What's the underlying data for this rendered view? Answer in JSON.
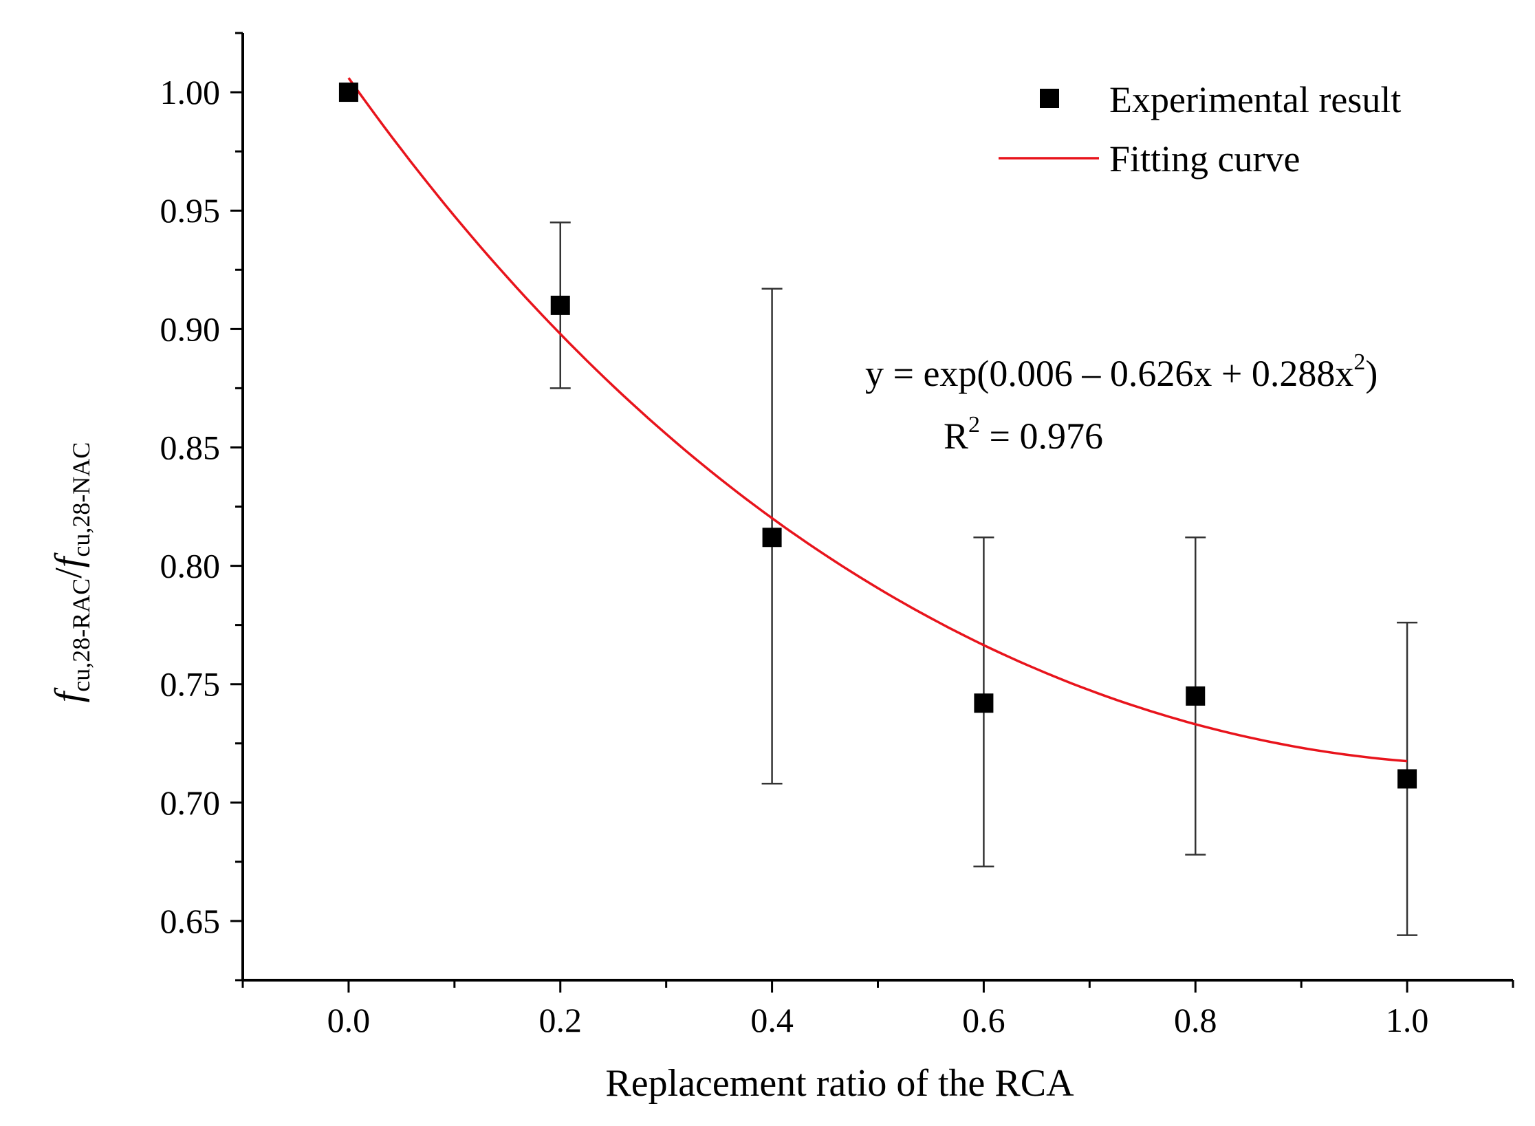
{
  "chart_data": {
    "type": "scatter",
    "title": "",
    "xlabel": "Replacement ratio of the RCA",
    "ylabel": {
      "f1": "f",
      "sub1": "cu,28-RAC",
      "slash": "/",
      "f2": "f",
      "sub2": "cu,28-NAC"
    },
    "xlim": [
      -0.1,
      1.1
    ],
    "ylim": [
      0.625,
      1.025
    ],
    "x_ticks": [
      "0.0",
      "0.2",
      "0.4",
      "0.6",
      "0.8",
      "1.0"
    ],
    "y_ticks": [
      "0.65",
      "0.70",
      "0.75",
      "0.80",
      "0.85",
      "0.90",
      "0.95",
      "1.00"
    ],
    "grid": false,
    "legend_position": "top-right",
    "series": [
      {
        "name": "Experimental result",
        "kind": "points-with-error-bars",
        "color": "#000000",
        "points": [
          {
            "x": 0.0,
            "y": 1.0,
            "err_low": 1.0,
            "err_high": 1.0
          },
          {
            "x": 0.2,
            "y": 0.91,
            "err_low": 0.875,
            "err_high": 0.945
          },
          {
            "x": 0.4,
            "y": 0.812,
            "err_low": 0.708,
            "err_high": 0.917
          },
          {
            "x": 0.6,
            "y": 0.742,
            "err_low": 0.673,
            "err_high": 0.812
          },
          {
            "x": 0.8,
            "y": 0.745,
            "err_low": 0.678,
            "err_high": 0.812
          },
          {
            "x": 1.0,
            "y": 0.71,
            "err_low": 0.644,
            "err_high": 0.776
          }
        ]
      },
      {
        "name": "Fitting curve",
        "kind": "fit-line",
        "color": "#e8141c",
        "equation": {
          "c0": 0.006,
          "c1": -0.626,
          "c2": 0.288
        },
        "x_range": [
          0.0,
          1.0
        ]
      }
    ],
    "annotations": {
      "equation_text": {
        "prefix": "y = exp(0.006 – 0.626x + 0.288x",
        "sup": "2",
        "suffix": ")"
      },
      "r2_text": {
        "prefix": "R",
        "sup": "2",
        "suffix": " = 0.976"
      }
    }
  }
}
